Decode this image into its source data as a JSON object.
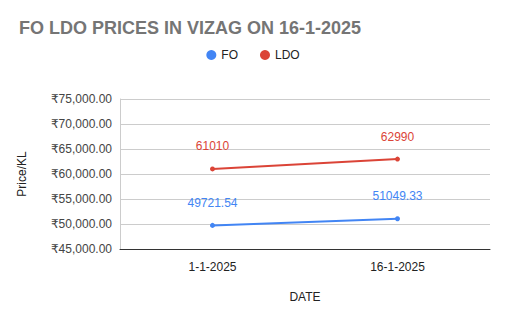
{
  "chart_data": {
    "type": "line",
    "title": "FO LDO PRICES IN VIZAG ON 16-1-2025",
    "x_label": "DATE",
    "y_label": "Price/KL",
    "categories": [
      "1-1-2025",
      "16-1-2025"
    ],
    "series": [
      {
        "name": "FO",
        "color": "#4285f4",
        "values": [
          49721.54,
          51049.33
        ]
      },
      {
        "name": "LDO",
        "color": "#db4437",
        "values": [
          61010,
          62990
        ]
      }
    ],
    "ylim": [
      45000,
      75000
    ],
    "yticks": [
      {
        "value": 45000,
        "label": "₹45,000.00"
      },
      {
        "value": 50000,
        "label": "₹50,000.00"
      },
      {
        "value": 55000,
        "label": "₹55,000.00"
      },
      {
        "value": 60000,
        "label": "₹60,000.00"
      },
      {
        "value": 65000,
        "label": "₹65,000.00"
      },
      {
        "value": 70000,
        "label": "₹70,000.00"
      },
      {
        "value": 75000,
        "label": "₹75,000.00"
      }
    ],
    "grid": true,
    "legend": "top",
    "data_labels": true,
    "marker": "circle"
  }
}
